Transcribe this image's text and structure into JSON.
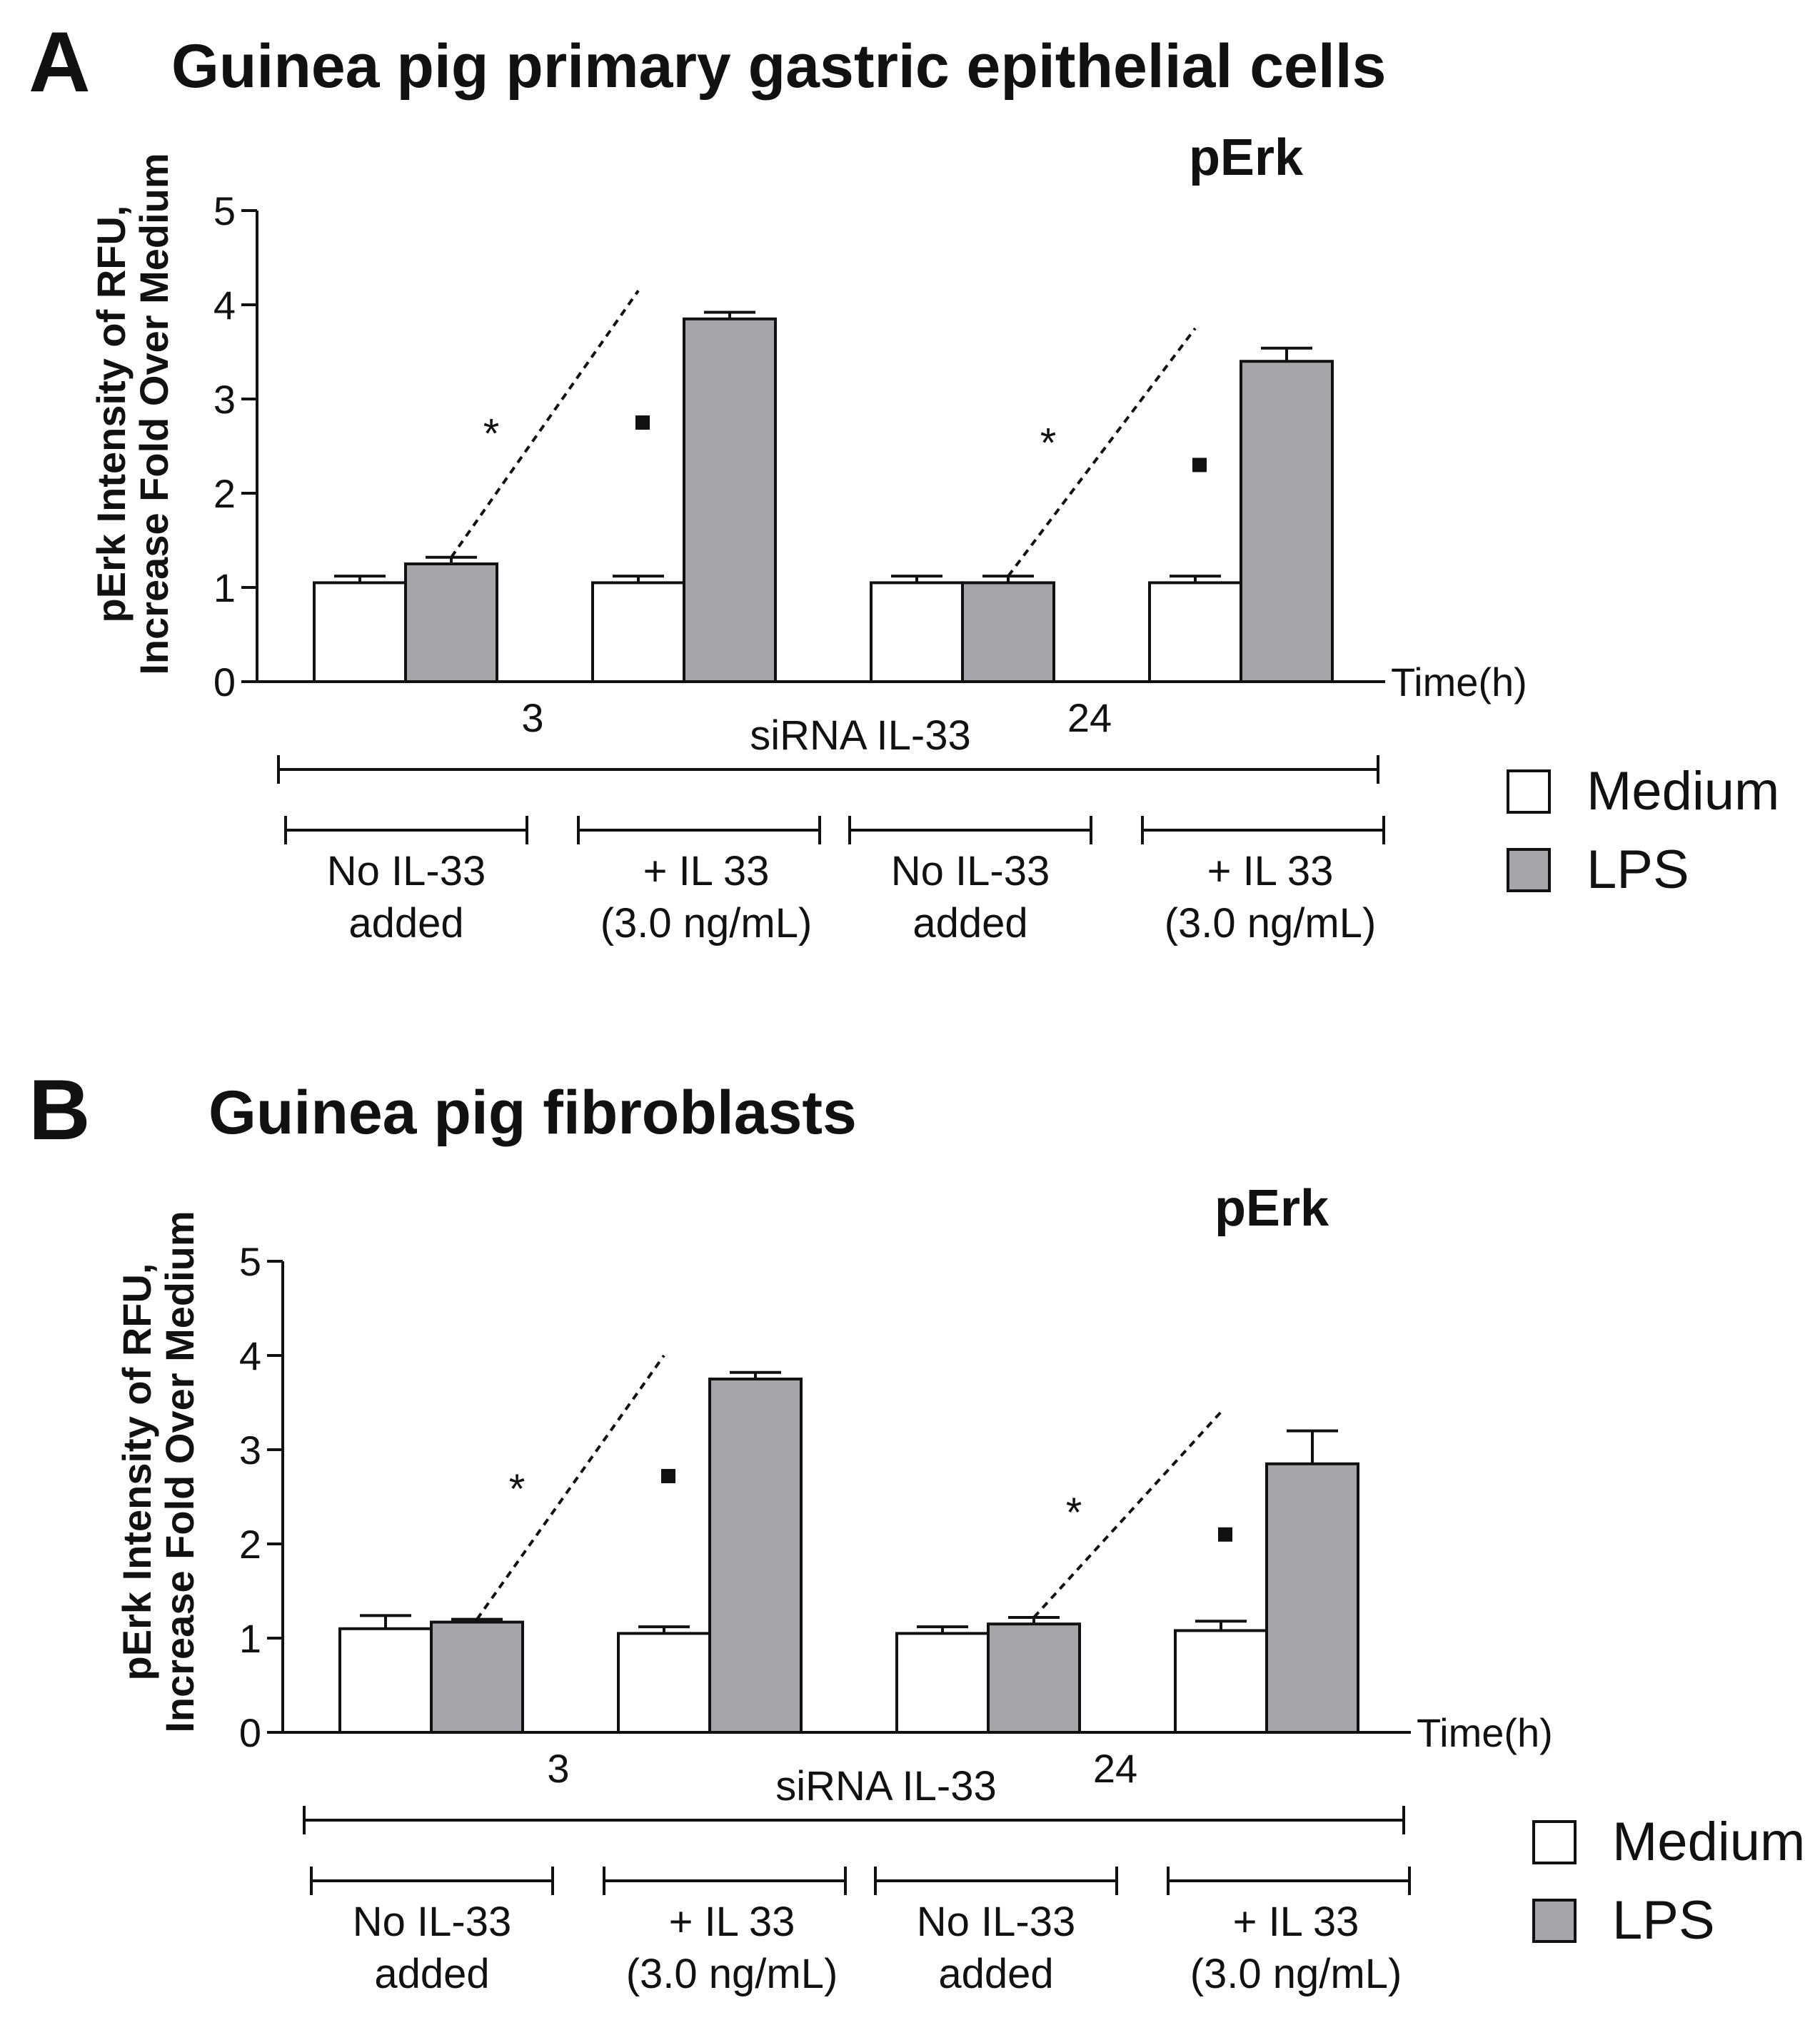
{
  "panels": [
    {
      "letter": "A",
      "title": "Guinea pig primary gastric epithelial cells",
      "chart_data": {
        "type": "bar",
        "title": "pErk",
        "ylabel_lines": [
          "pErk Intensity of RFU,",
          "Increase Fold Over Medium"
        ],
        "xlabel": "Time(h)",
        "ylim": [
          0,
          5
        ],
        "yticks": [
          0,
          1,
          2,
          3,
          4,
          5
        ],
        "grid": false,
        "groups": [
          "No IL-33 added 3h",
          "+ IL 33 (3.0 ng/mL) 3h",
          "No IL-33 added 24h",
          "+ IL 33 (3.0 ng/mL) 24h"
        ],
        "series": [
          {
            "name": "Medium",
            "color": "#ffffff",
            "values": [
              1.05,
              1.05,
              1.05,
              1.05
            ],
            "errors": [
              0.07,
              0.07,
              0.07,
              0.07
            ]
          },
          {
            "name": "LPS",
            "color": "#a6a6aa",
            "values": [
              1.25,
              3.85,
              1.05,
              3.4
            ],
            "errors": [
              0.07,
              0.07,
              0.07,
              0.14
            ]
          }
        ],
        "time_ticks": [
          {
            "label": "3",
            "after_group": 0
          },
          {
            "label": "24",
            "after_group": 2
          }
        ],
        "group_label": "siRNA IL-33",
        "brackets": [
          {
            "line1": "No IL-33",
            "line2": "added"
          },
          {
            "line1": "+ IL 33",
            "line2": "(3.0 ng/mL)"
          },
          {
            "line1": "No IL-33",
            "line2": "added"
          },
          {
            "line1": "+ IL 33",
            "line2": "(3.0 ng/mL)"
          }
        ],
        "annotations": [
          {
            "symbol": "*",
            "from_group": 0,
            "to_group": 1,
            "star_y": 2.8,
            "square_y": 2.75,
            "line_end_y": 4.15
          },
          {
            "symbol": "*",
            "from_group": 2,
            "to_group": 3,
            "star_y": 2.7,
            "square_y": 2.3,
            "line_end_y": 3.75
          }
        ],
        "legend": [
          {
            "label": "Medium",
            "color": "#ffffff"
          },
          {
            "label": "LPS",
            "color": "#a6a6aa"
          }
        ]
      }
    },
    {
      "letter": "B",
      "title": "Guinea pig fibroblasts",
      "chart_data": {
        "type": "bar",
        "title": "pErk",
        "ylabel_lines": [
          "pErk Intensity of RFU,",
          "Increase Fold Over Medium"
        ],
        "xlabel": "Time(h)",
        "ylim": [
          0,
          5
        ],
        "yticks": [
          0,
          1,
          2,
          3,
          4,
          5
        ],
        "grid": false,
        "groups": [
          "No IL-33 added 3h",
          "+ IL 33 (3.0 ng/mL) 3h",
          "No IL-33 added 24h",
          "+ IL 33 (3.0 ng/mL) 24h"
        ],
        "series": [
          {
            "name": "Medium",
            "color": "#ffffff",
            "values": [
              1.1,
              1.05,
              1.05,
              1.08
            ],
            "errors": [
              0.14,
              0.07,
              0.07,
              0.1
            ]
          },
          {
            "name": "LPS",
            "color": "#a6a6aa",
            "values": [
              1.17,
              3.75,
              1.15,
              2.85
            ],
            "errors": [
              0.03,
              0.07,
              0.07,
              0.35
            ]
          }
        ],
        "time_ticks": [
          {
            "label": "3",
            "after_group": 0
          },
          {
            "label": "24",
            "after_group": 2
          }
        ],
        "group_label": "siRNA IL-33",
        "brackets": [
          {
            "line1": "No IL-33",
            "line2": "added"
          },
          {
            "line1": "+ IL 33",
            "line2": "(3.0 ng/mL)"
          },
          {
            "line1": "No IL-33",
            "line2": "added"
          },
          {
            "line1": "+ IL 33",
            "line2": "(3.0 ng/mL)"
          }
        ],
        "annotations": [
          {
            "symbol": "*",
            "from_group": 0,
            "to_group": 1,
            "star_y": 2.75,
            "square_y": 2.72,
            "line_end_y": 4.0
          },
          {
            "symbol": "*",
            "from_group": 2,
            "to_group": 3,
            "star_y": 2.5,
            "square_y": 2.1,
            "line_end_y": 3.4
          }
        ],
        "legend": [
          {
            "label": "Medium",
            "color": "#ffffff"
          },
          {
            "label": "LPS",
            "color": "#a6a6aa"
          }
        ]
      }
    }
  ]
}
